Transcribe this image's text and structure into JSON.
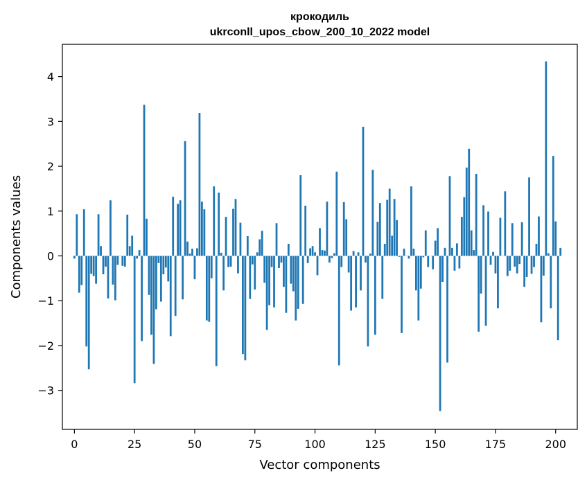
{
  "chart_data": {
    "type": "bar",
    "title": "крокодиль",
    "subtitle": "ukrconll_upos_cbow_200_10_2022 model",
    "xlabel": "Vector components",
    "ylabel": "Components values",
    "xlim": [
      -5,
      209
    ],
    "ylim": [
      -3.87,
      4.72
    ],
    "xticks": [
      0,
      25,
      50,
      75,
      100,
      125,
      150,
      175,
      200
    ],
    "yticks": [
      -3,
      -2,
      -1,
      0,
      1,
      2,
      3,
      4
    ],
    "ytick_labels": [
      "−3",
      "−2",
      "−1",
      "0",
      "1",
      "2",
      "3",
      "4"
    ],
    "bar_color": "#1f77b4",
    "grid": false,
    "legend": "none",
    "series": [
      {
        "values": [
          -0.06,
          0.93,
          -0.82,
          -0.65,
          1.04,
          -2.02,
          -2.53,
          -0.4,
          -0.45,
          -0.62,
          0.93,
          0.22,
          -0.41,
          -0.24,
          -0.95,
          1.24,
          -0.64,
          -0.99,
          -0.2,
          0.0,
          -0.22,
          -0.24,
          0.92,
          0.22,
          0.45,
          -2.84,
          -0.06,
          0.13,
          -1.9,
          3.37,
          0.83,
          -0.87,
          -1.76,
          -2.41,
          -1.19,
          -0.16,
          -1.02,
          -0.41,
          -0.26,
          -0.57,
          -1.79,
          1.32,
          -1.34,
          1.16,
          1.24,
          -0.97,
          2.56,
          0.32,
          0.05,
          0.16,
          -0.52,
          0.17,
          3.19,
          1.21,
          1.04,
          -1.44,
          -1.47,
          -0.5,
          1.55,
          -2.46,
          1.41,
          0.07,
          -0.77,
          0.87,
          -0.25,
          -0.24,
          1.05,
          1.27,
          -0.39,
          0.74,
          -2.19,
          -2.33,
          0.44,
          -0.96,
          -0.19,
          -0.75,
          0.08,
          0.37,
          0.56,
          -0.6,
          -1.65,
          -1.1,
          -0.25,
          -1.15,
          0.73,
          -0.27,
          -0.15,
          -0.69,
          -1.27,
          0.27,
          -0.62,
          -0.79,
          -1.44,
          -1.18,
          1.8,
          -1.07,
          1.12,
          -0.16,
          0.17,
          0.22,
          0.08,
          -0.43,
          0.62,
          0.13,
          0.12,
          1.21,
          -0.15,
          -0.05,
          0.06,
          1.88,
          -2.44,
          -0.25,
          1.2,
          0.82,
          -0.37,
          -1.22,
          0.11,
          -1.15,
          0.08,
          -0.77,
          2.88,
          -0.15,
          -2.02,
          0.05,
          1.92,
          -1.76,
          0.76,
          1.18,
          -0.96,
          0.27,
          1.25,
          1.5,
          0.45,
          1.27,
          0.8,
          -0.02,
          -1.72,
          0.16,
          0.0,
          -0.06,
          1.55,
          0.16,
          -0.77,
          -1.44,
          -0.73,
          -0.03,
          0.57,
          -0.25,
          0.0,
          -0.3,
          0.34,
          0.62,
          -3.46,
          -0.58,
          0.18,
          -2.38,
          1.78,
          0.18,
          -0.33,
          0.28,
          -0.28,
          0.87,
          1.31,
          1.97,
          2.39,
          0.57,
          0.13,
          1.83,
          -1.69,
          -0.84,
          1.13,
          -1.56,
          0.99,
          -0.2,
          0.09,
          -0.39,
          -1.17,
          0.85,
          0.0,
          1.44,
          -0.45,
          -0.33,
          0.73,
          -0.24,
          -0.39,
          -0.18,
          0.75,
          -0.69,
          -0.47,
          1.75,
          -0.4,
          -0.25,
          0.27,
          0.88,
          -1.48,
          -0.44,
          4.34,
          0.06,
          -1.17,
          2.23,
          0.77,
          -1.88,
          0.18
        ]
      }
    ]
  }
}
